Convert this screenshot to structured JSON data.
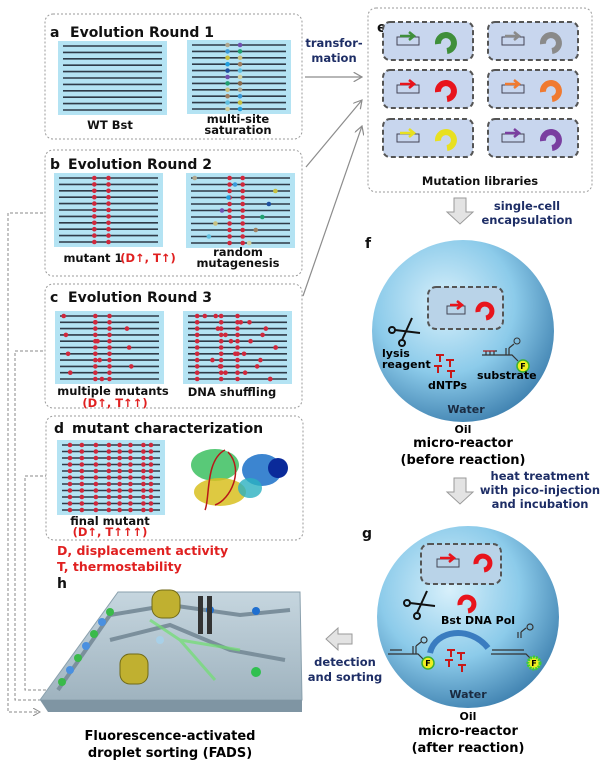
{
  "panels": {
    "a": {
      "letter": "a",
      "title": "Evolution Round 1",
      "left_label": "WT Bst",
      "right_label_1": "multi-site",
      "right_label_2": "saturation"
    },
    "b": {
      "letter": "b",
      "title": "Evolution Round 2",
      "left_label": "mutant 1",
      "left_tag": "(D↑, T↑)",
      "right_label_1": "random",
      "right_label_2": "mutagenesis"
    },
    "c": {
      "letter": "c",
      "title": "Evolution Round 3",
      "left_label": "multiple mutants",
      "left_tag": "(D↑, T↑↑)",
      "right_label": "DNA shuffling"
    },
    "d": {
      "letter": "d",
      "title": "mutant characterization",
      "left_label": "final mutant",
      "left_tag": "(D↑, T↑↑↑)"
    },
    "e": {
      "letter": "e",
      "title": "Mutation libraries"
    },
    "f": {
      "letter": "f",
      "lysis_1": "lysis",
      "lysis_2": "reagent",
      "dntps": "dNTPs",
      "substrate": "substrate",
      "fluor": "F",
      "water": "Water",
      "oil": "Oil",
      "caption_1": "micro-reactor",
      "caption_2": "(before reaction)"
    },
    "g": {
      "letter": "g",
      "polymerase": "Bst DNA Pol",
      "fluor": "F",
      "water": "Water",
      "oil": "Oil",
      "caption_1": "micro-reactor",
      "caption_2": "(after reaction)"
    },
    "h": {
      "letter": "h",
      "caption_1": "Fluorescence-activated",
      "caption_2": "droplet sorting (FADS)"
    }
  },
  "legend": {
    "d": "D, displacement activity",
    "t": "T, thermostability"
  },
  "steps": {
    "transformation_1": "transfor-",
    "transformation_2": "mation",
    "encapsulation_1": "single-cell",
    "encapsulation_2": "encapsulation",
    "heat_1": "heat treatment",
    "heat_2": "with pico-injection",
    "heat_3": "and incubation",
    "detect_1": "detection",
    "detect_2": "and sorting"
  },
  "colors": {
    "panel_bg": "#b4e3f3",
    "mutation": "#d0283c",
    "accent_red": "#e02020",
    "step_text": "#1e2e66",
    "droplet": "#7cc3e6"
  },
  "library_colors": [
    "#3f8f3a",
    "#8a8a8a",
    "#e8141c",
    "#f07a30",
    "#e8e020",
    "#7a3fa0"
  ]
}
